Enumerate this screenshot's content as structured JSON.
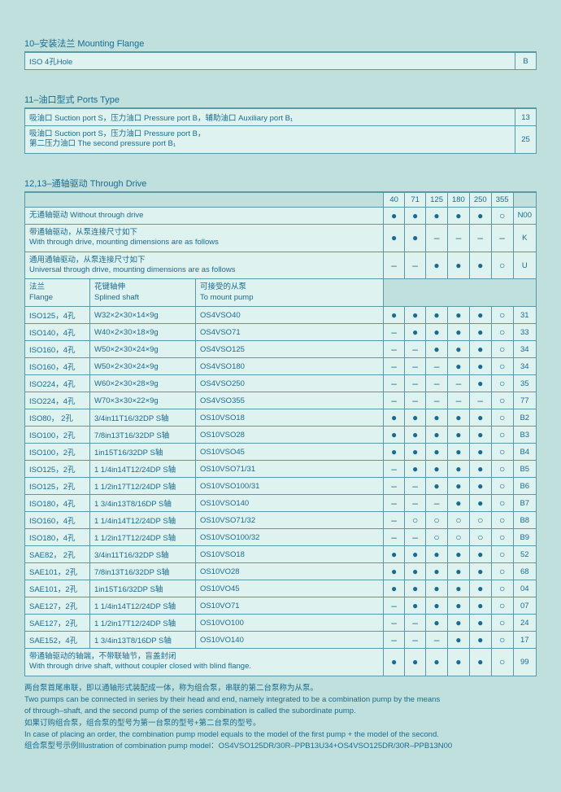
{
  "page_bg": "#bfe0dd",
  "table_bg": "#def2ef",
  "border": "#5a98a8",
  "text": "#1a6b8f",
  "symbols": {
    "filled": "●",
    "open": "○",
    "dash": "–"
  },
  "s10": {
    "title": "10–安装法兰 Mounting Flange",
    "row": {
      "label": "ISO 4孔Hole",
      "code": "B"
    }
  },
  "s11": {
    "title": "11–油口型式 Ports Type",
    "rows": [
      {
        "label": "吸油口 Suction port  S，压力油口 Pressure port  B，辅助油口 Auxiliary port  B₁",
        "code": "13"
      },
      {
        "l1": "吸油口 Suction port  S，压力油口 Pressure port  B，",
        "l2": "第二压力油口 The second pressure port  B₁",
        "code": "25"
      }
    ]
  },
  "s12": {
    "title": "12,13–通轴驱动 Through Drive",
    "sizes": [
      "40",
      "71",
      "125",
      "180",
      "250",
      "355"
    ],
    "top_rows": [
      {
        "label": "无通轴驱动 Without through drive",
        "marks": [
          "●",
          "●",
          "●",
          "●",
          "●",
          "○"
        ],
        "code": "N00"
      },
      {
        "l1": "带通轴驱动，从泵连接尺寸如下",
        "l2": "With through drive, mounting dimensions are as follows",
        "marks": [
          "●",
          "●",
          "–",
          "–",
          "–",
          "–"
        ],
        "code": "K"
      },
      {
        "l1": "通用通轴驱动，从泵连接尺寸如下",
        "l2": "Universal through drive, mounting dimensions are as follows",
        "marks": [
          "–",
          "–",
          "●",
          "●",
          "●",
          "○"
        ],
        "code": "U"
      }
    ],
    "sub_head": {
      "flange_cn": "法兰",
      "flange_en": "Flange",
      "shaft_cn": "花键轴伸",
      "shaft_en": "Splined shaft",
      "pump_cn": "可接受的从泵",
      "pump_en": "To mount pump"
    },
    "data": [
      {
        "f": "ISO125，4孔",
        "s": "W32×2×30×14×9g",
        "p": "OS4VSO40",
        "m": [
          "●",
          "●",
          "●",
          "●",
          "●",
          "○"
        ],
        "c": "31"
      },
      {
        "f": "ISO140，4孔",
        "s": "W40×2×30×18×9g",
        "p": "OS4VSO71",
        "m": [
          "–",
          "●",
          "●",
          "●",
          "●",
          "○"
        ],
        "c": "33"
      },
      {
        "f": "ISO160，4孔",
        "s": "W50×2×30×24×9g",
        "p": "OS4VSO125",
        "m": [
          "–",
          "–",
          "●",
          "●",
          "●",
          "○"
        ],
        "c": "34"
      },
      {
        "f": "ISO160，4孔",
        "s": "W50×2×30×24×9g",
        "p": "OS4VSO180",
        "m": [
          "–",
          "–",
          "–",
          "●",
          "●",
          "○"
        ],
        "c": "34"
      },
      {
        "f": "ISO224，4孔",
        "s": "W60×2×30×28×9g",
        "p": "OS4VSO250",
        "m": [
          "–",
          "–",
          "–",
          "–",
          "●",
          "○"
        ],
        "c": "35"
      },
      {
        "f": "ISO224，4孔",
        "s": "W70×3×30×22×9g",
        "p": "OS4VSO355",
        "m": [
          "–",
          "–",
          "–",
          "–",
          "–",
          "○"
        ],
        "c": "77"
      },
      {
        "f": "ISO80， 2孔",
        "s": "3/4in11T16/32DP  S轴",
        "p": "OS10VSO18",
        "m": [
          "●",
          "●",
          "●",
          "●",
          "●",
          "○"
        ],
        "c": "B2"
      },
      {
        "f": "ISO100，2孔",
        "s": "7/8in13T16/32DP  S轴",
        "p": "OS10VSO28",
        "m": [
          "●",
          "●",
          "●",
          "●",
          "●",
          "○"
        ],
        "c": "B3"
      },
      {
        "f": "ISO100，2孔",
        "s": "1in15T16/32DP   S轴",
        "p": "OS10VSO45",
        "m": [
          "●",
          "●",
          "●",
          "●",
          "●",
          "○"
        ],
        "c": "B4"
      },
      {
        "f": "ISO125，2孔",
        "s": "1 1/4in14T12/24DP S轴",
        "p": "OS10VSO71/31",
        "m": [
          "–",
          "●",
          "●",
          "●",
          "●",
          "○"
        ],
        "c": "B5"
      },
      {
        "f": "ISO125，2孔",
        "s": "1 1/2in17T12/24DP S轴",
        "p": "OS10VSO100/31",
        "m": [
          "–",
          "–",
          "●",
          "●",
          "●",
          "○"
        ],
        "c": "B6"
      },
      {
        "f": "ISO180，4孔",
        "s": "1 3/4in13T8/16DP S轴",
        "p": "OS10VSO140",
        "m": [
          "–",
          "–",
          "–",
          "●",
          "●",
          "○"
        ],
        "c": "B7"
      },
      {
        "f": "ISO160，4孔",
        "s": "1 1/4in14T12/24DP S轴",
        "p": "OS10VSO71/32",
        "m": [
          "–",
          "○",
          "○",
          "○",
          "○",
          "○"
        ],
        "c": "B8"
      },
      {
        "f": "ISO180，4孔",
        "s": "1 1/2in17T12/24DP S轴",
        "p": "OS10VSO100/32",
        "m": [
          "–",
          "–",
          "○",
          "○",
          "○",
          "○"
        ],
        "c": "B9"
      },
      {
        "f": "SAE82， 2孔",
        "s": "3/4in11T16/32DP  S轴",
        "p": "OS10VSO18",
        "m": [
          "●",
          "●",
          "●",
          "●",
          "●",
          "○"
        ],
        "c": "52"
      },
      {
        "f": "SAE101，2孔",
        "s": "7/8in13T16/32DP  S轴",
        "p": "OS10VO28",
        "m": [
          "●",
          "●",
          "●",
          "●",
          "●",
          "○"
        ],
        "c": "68"
      },
      {
        "f": "SAE101，2孔",
        "s": "1in15T16/32DP   S轴",
        "p": "OS10VO45",
        "m": [
          "●",
          "●",
          "●",
          "●",
          "●",
          "○"
        ],
        "c": "04"
      },
      {
        "f": "SAE127，2孔",
        "s": "1 1/4in14T12/24DP S轴",
        "p": "OS10VO71",
        "m": [
          "–",
          "●",
          "●",
          "●",
          "●",
          "○"
        ],
        "c": "07"
      },
      {
        "f": "SAE127，2孔",
        "s": "1 1/2in17T12/24DP S轴",
        "p": "OS10VO100",
        "m": [
          "–",
          "–",
          "●",
          "●",
          "●",
          "○"
        ],
        "c": "24"
      },
      {
        "f": "SAE152，4孔",
        "s": "1 3/4in13T8/16DP  S轴",
        "p": "OS10VO140",
        "m": [
          "–",
          "–",
          "–",
          "●",
          "●",
          "○"
        ],
        "c": "17"
      }
    ],
    "bottom": {
      "l1": "带通轴驱动的轴端，不带联轴节，盲盖封闭",
      "l2": "With through drive shaft, without coupler closed with blind flange.",
      "m": [
        "●",
        "●",
        "●",
        "●",
        "●",
        "○"
      ],
      "c": "99"
    }
  },
  "notes": [
    "两台泵首尾串联，即以通轴形式装配成一体，称为组合泵，串联的第二台泵称为从泵。",
    "Two pumps can be connected in series by their head and end, namely integrated to be a combination pump by the means",
    "of through–shaft, and the second pump of the series combination is called the subordinate pump.",
    "如果订购组合泵，组合泵的型号为第一台泵的型号+第二台泵的型号。",
    "In case of placing an order, the combination pump model equals to the model of the first pump + the model of the second.",
    "组合泵型号示例Illustration of combination pump model：OS4VSO125DR/30R–PPB13U34+OS4VSO125DR/30R–PPB13N00"
  ]
}
